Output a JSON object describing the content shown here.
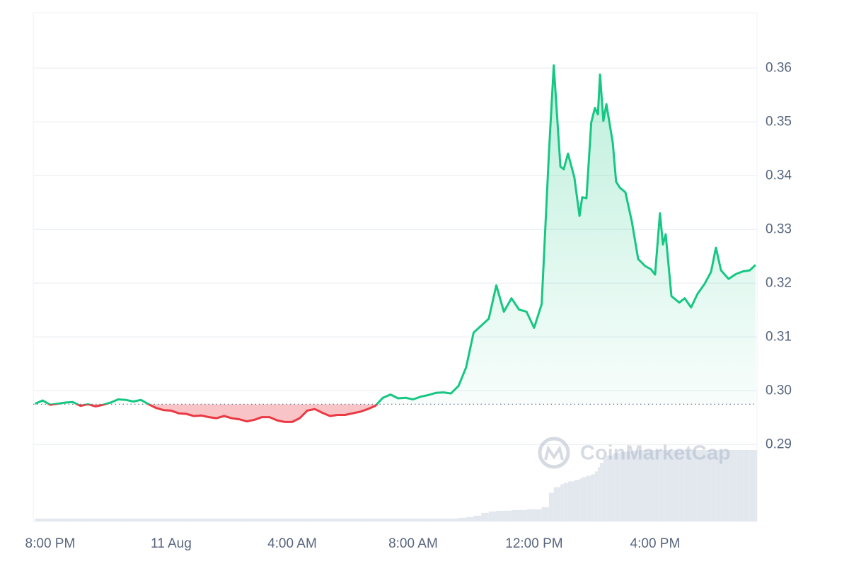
{
  "chart_data": {
    "type": "line",
    "x": [
      19.5,
      19.75,
      20,
      20.25,
      20.5,
      20.75,
      21,
      21.25,
      21.5,
      21.75,
      22,
      22.25,
      22.5,
      22.75,
      23,
      23.25,
      23.5,
      23.75,
      24,
      24.25,
      24.5,
      24.75,
      25,
      25.25,
      25.5,
      25.75,
      26,
      26.25,
      26.5,
      26.75,
      27,
      27.25,
      27.5,
      27.75,
      28,
      28.25,
      28.5,
      28.75,
      29,
      29.25,
      29.5,
      29.75,
      30,
      30.25,
      30.5,
      30.75,
      31,
      31.25,
      31.5,
      31.75,
      32,
      32.25,
      32.5,
      32.75,
      33,
      33.25,
      33.5,
      33.75,
      34,
      34.25,
      34.5,
      34.75,
      35,
      35.25,
      35.5,
      35.75,
      36,
      36.25,
      36.49,
      36.65,
      36.87,
      36.98,
      37.12,
      37.33,
      37.5,
      37.59,
      37.73,
      37.89,
      38.01,
      38.11,
      38.18,
      38.29,
      38.39,
      38.6,
      38.71,
      38.83,
      39.02,
      39.23,
      39.44,
      39.67,
      39.86,
      40,
      40.16,
      40.26,
      40.35,
      40.54,
      40.8,
      40.98,
      41.19,
      41.4,
      41.64,
      41.85,
      42.01,
      42.18,
      42.43,
      42.67,
      42.9,
      43.13,
      43.32
    ],
    "values": [
      0.2976,
      0.2982,
      0.2974,
      0.2976,
      0.2978,
      0.2979,
      0.2972,
      0.2975,
      0.2971,
      0.2974,
      0.2978,
      0.2984,
      0.2983,
      0.298,
      0.2983,
      0.2975,
      0.2968,
      0.2964,
      0.2963,
      0.2958,
      0.2957,
      0.2953,
      0.2954,
      0.2951,
      0.2949,
      0.2953,
      0.2949,
      0.2947,
      0.2943,
      0.2946,
      0.2951,
      0.2951,
      0.2945,
      0.2942,
      0.2942,
      0.2949,
      0.2963,
      0.2966,
      0.2959,
      0.2953,
      0.2955,
      0.2955,
      0.2958,
      0.2961,
      0.2966,
      0.2972,
      0.2987,
      0.2993,
      0.2986,
      0.2987,
      0.2984,
      0.2989,
      0.2992,
      0.2996,
      0.2997,
      0.2995,
      0.3009,
      0.3043,
      0.3108,
      0.3121,
      0.3134,
      0.3196,
      0.3147,
      0.3172,
      0.3151,
      0.3147,
      0.3117,
      0.3161,
      0.3443,
      0.3605,
      0.3417,
      0.3412,
      0.3441,
      0.3397,
      0.3325,
      0.336,
      0.3358,
      0.3499,
      0.3526,
      0.3514,
      0.3588,
      0.3502,
      0.3533,
      0.3461,
      0.3389,
      0.3378,
      0.3369,
      0.3315,
      0.3245,
      0.3232,
      0.3226,
      0.3216,
      0.333,
      0.3272,
      0.3291,
      0.3176,
      0.3164,
      0.3172,
      0.3155,
      0.318,
      0.3199,
      0.3221,
      0.3266,
      0.3224,
      0.3208,
      0.3217,
      0.3222,
      0.3224,
      0.3234
    ],
    "volume": [
      4,
      4,
      4,
      4,
      4,
      4,
      4,
      4,
      4,
      4,
      4,
      4,
      4,
      4,
      4,
      4,
      4,
      4,
      4,
      4,
      4,
      4,
      4,
      4,
      4,
      4,
      4,
      4,
      4,
      4,
      4,
      4,
      4,
      4,
      4,
      4,
      4,
      4,
      4,
      4,
      4,
      4,
      4,
      4,
      4,
      4,
      4,
      4,
      4,
      4,
      4,
      4,
      4,
      4,
      4,
      4,
      5,
      6,
      8,
      12,
      14,
      15,
      15,
      16,
      16,
      17,
      17,
      20,
      40,
      48,
      52,
      54,
      56,
      58,
      60,
      62,
      64,
      66,
      70,
      76,
      82,
      88,
      92,
      95,
      96,
      97,
      98,
      99,
      100,
      100,
      100,
      100,
      100,
      100,
      100,
      100,
      100,
      100,
      100,
      100,
      100,
      100,
      100,
      100,
      100,
      100,
      100,
      100,
      100
    ],
    "baseline": 0.2975,
    "up_color": "#16c784",
    "down_color": "#ea3943",
    "volume_color": "#e3e8ef",
    "xlim": [
      19.44,
      43.37
    ],
    "xticks": [
      {
        "value": 20,
        "label": "8:00 PM"
      },
      {
        "value": 24,
        "label": "11 Aug"
      },
      {
        "value": 28,
        "label": "4:00 AM"
      },
      {
        "value": 32,
        "label": "8:00 AM"
      },
      {
        "value": 36,
        "label": "12:00 PM"
      },
      {
        "value": 40,
        "label": "4:00 PM"
      }
    ],
    "ylim": [
      0.2757,
      0.3703
    ],
    "yticks": [
      0.29,
      {
        "value": 0.3,
        "label": "0.30"
      },
      0.31,
      0.32,
      0.33,
      0.34,
      0.35,
      0.36
    ],
    "grid": true,
    "watermark": "CoinMarketCap"
  }
}
